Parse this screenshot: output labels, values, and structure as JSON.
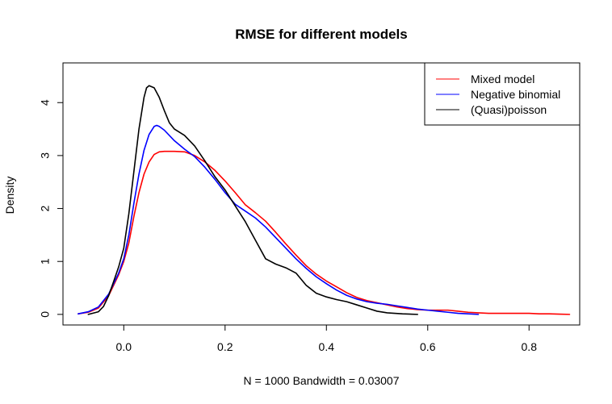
{
  "chart_data": {
    "type": "line",
    "title": "RMSE for different models",
    "xlabel": "N = 1000   Bandwidth = 0.03007",
    "ylabel": "Density",
    "xlim": [
      -0.12,
      0.9
    ],
    "ylim": [
      -0.2,
      4.75
    ],
    "xticks": [
      0.0,
      0.2,
      0.4,
      0.6,
      0.8
    ],
    "xtick_labels": [
      "0.0",
      "0.2",
      "0.4",
      "0.6",
      "0.8"
    ],
    "yticks": [
      0,
      1,
      2,
      3,
      4
    ],
    "ytick_labels": [
      "0",
      "1",
      "2",
      "3",
      "4"
    ],
    "grid": false,
    "legend_position": "top-right",
    "series": [
      {
        "name": "Mixed model",
        "color": "#ff0000",
        "points": [
          [
            -0.09,
            0.01
          ],
          [
            -0.07,
            0.04
          ],
          [
            -0.05,
            0.12
          ],
          [
            -0.03,
            0.35
          ],
          [
            -0.01,
            0.75
          ],
          [
            0.0,
            1.0
          ],
          [
            0.01,
            1.35
          ],
          [
            0.02,
            1.85
          ],
          [
            0.03,
            2.3
          ],
          [
            0.04,
            2.65
          ],
          [
            0.05,
            2.88
          ],
          [
            0.06,
            3.02
          ],
          [
            0.07,
            3.07
          ],
          [
            0.08,
            3.08
          ],
          [
            0.1,
            3.08
          ],
          [
            0.12,
            3.07
          ],
          [
            0.14,
            3.0
          ],
          [
            0.16,
            2.88
          ],
          [
            0.18,
            2.72
          ],
          [
            0.2,
            2.52
          ],
          [
            0.22,
            2.3
          ],
          [
            0.24,
            2.07
          ],
          [
            0.26,
            1.92
          ],
          [
            0.28,
            1.76
          ],
          [
            0.3,
            1.55
          ],
          [
            0.32,
            1.33
          ],
          [
            0.34,
            1.12
          ],
          [
            0.36,
            0.92
          ],
          [
            0.38,
            0.76
          ],
          [
            0.4,
            0.63
          ],
          [
            0.42,
            0.52
          ],
          [
            0.44,
            0.41
          ],
          [
            0.46,
            0.32
          ],
          [
            0.48,
            0.26
          ],
          [
            0.5,
            0.22
          ],
          [
            0.52,
            0.18
          ],
          [
            0.54,
            0.14
          ],
          [
            0.56,
            0.11
          ],
          [
            0.58,
            0.09
          ],
          [
            0.6,
            0.08
          ],
          [
            0.62,
            0.08
          ],
          [
            0.64,
            0.08
          ],
          [
            0.66,
            0.06
          ],
          [
            0.68,
            0.04
          ],
          [
            0.7,
            0.03
          ],
          [
            0.72,
            0.02
          ],
          [
            0.74,
            0.02
          ],
          [
            0.76,
            0.02
          ],
          [
            0.78,
            0.02
          ],
          [
            0.8,
            0.02
          ],
          [
            0.82,
            0.01
          ],
          [
            0.84,
            0.01
          ],
          [
            0.86,
            0.005
          ],
          [
            0.88,
            0.0
          ]
        ]
      },
      {
        "name": "Negative binomial",
        "color": "#0000ff",
        "points": [
          [
            -0.09,
            0.01
          ],
          [
            -0.07,
            0.05
          ],
          [
            -0.05,
            0.14
          ],
          [
            -0.03,
            0.38
          ],
          [
            -0.01,
            0.78
          ],
          [
            0.0,
            1.05
          ],
          [
            0.01,
            1.5
          ],
          [
            0.02,
            2.1
          ],
          [
            0.03,
            2.65
          ],
          [
            0.04,
            3.1
          ],
          [
            0.05,
            3.4
          ],
          [
            0.06,
            3.55
          ],
          [
            0.065,
            3.57
          ],
          [
            0.07,
            3.55
          ],
          [
            0.08,
            3.48
          ],
          [
            0.1,
            3.28
          ],
          [
            0.12,
            3.12
          ],
          [
            0.14,
            2.98
          ],
          [
            0.16,
            2.78
          ],
          [
            0.18,
            2.55
          ],
          [
            0.2,
            2.3
          ],
          [
            0.22,
            2.08
          ],
          [
            0.24,
            1.95
          ],
          [
            0.26,
            1.82
          ],
          [
            0.28,
            1.65
          ],
          [
            0.3,
            1.45
          ],
          [
            0.32,
            1.25
          ],
          [
            0.34,
            1.05
          ],
          [
            0.36,
            0.87
          ],
          [
            0.38,
            0.71
          ],
          [
            0.4,
            0.58
          ],
          [
            0.42,
            0.46
          ],
          [
            0.44,
            0.36
          ],
          [
            0.46,
            0.29
          ],
          [
            0.48,
            0.24
          ],
          [
            0.5,
            0.21
          ],
          [
            0.52,
            0.19
          ],
          [
            0.54,
            0.16
          ],
          [
            0.56,
            0.13
          ],
          [
            0.58,
            0.1
          ],
          [
            0.6,
            0.08
          ],
          [
            0.62,
            0.06
          ],
          [
            0.64,
            0.04
          ],
          [
            0.66,
            0.02
          ],
          [
            0.68,
            0.01
          ],
          [
            0.7,
            0.0
          ]
        ]
      },
      {
        "name": "(Quasi)poisson",
        "color": "#000000",
        "points": [
          [
            -0.07,
            0.0
          ],
          [
            -0.05,
            0.05
          ],
          [
            -0.04,
            0.15
          ],
          [
            -0.03,
            0.35
          ],
          [
            -0.02,
            0.62
          ],
          [
            -0.01,
            0.9
          ],
          [
            0.0,
            1.25
          ],
          [
            0.01,
            1.9
          ],
          [
            0.02,
            2.7
          ],
          [
            0.03,
            3.5
          ],
          [
            0.04,
            4.1
          ],
          [
            0.045,
            4.28
          ],
          [
            0.05,
            4.32
          ],
          [
            0.06,
            4.28
          ],
          [
            0.07,
            4.1
          ],
          [
            0.08,
            3.85
          ],
          [
            0.09,
            3.62
          ],
          [
            0.1,
            3.5
          ],
          [
            0.12,
            3.38
          ],
          [
            0.14,
            3.18
          ],
          [
            0.16,
            2.9
          ],
          [
            0.18,
            2.6
          ],
          [
            0.2,
            2.35
          ],
          [
            0.22,
            2.05
          ],
          [
            0.24,
            1.75
          ],
          [
            0.26,
            1.4
          ],
          [
            0.28,
            1.05
          ],
          [
            0.3,
            0.95
          ],
          [
            0.32,
            0.88
          ],
          [
            0.34,
            0.78
          ],
          [
            0.36,
            0.55
          ],
          [
            0.38,
            0.4
          ],
          [
            0.4,
            0.33
          ],
          [
            0.42,
            0.28
          ],
          [
            0.44,
            0.24
          ],
          [
            0.46,
            0.18
          ],
          [
            0.48,
            0.12
          ],
          [
            0.5,
            0.06
          ],
          [
            0.52,
            0.03
          ],
          [
            0.55,
            0.01
          ],
          [
            0.58,
            0.0
          ]
        ]
      }
    ]
  }
}
